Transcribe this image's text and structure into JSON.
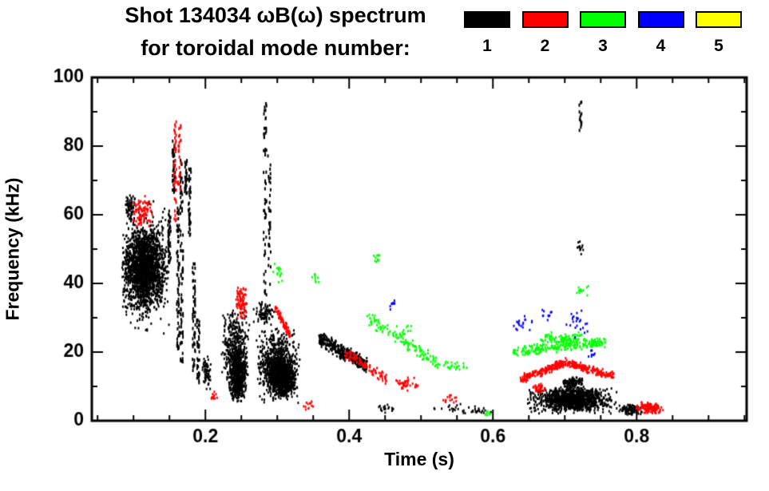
{
  "header": {
    "title_line1": "Shot 134034 ωB(ω) spectrum",
    "title_line2": "for toroidal mode number:"
  },
  "legend": {
    "entries": [
      {
        "label": "1",
        "color": "#000000"
      },
      {
        "label": "2",
        "color": "#ff0000"
      },
      {
        "label": "3",
        "color": "#00ff00"
      },
      {
        "label": "4",
        "color": "#0000ff"
      },
      {
        "label": "5",
        "color": "#ffff00"
      }
    ]
  },
  "chart_data": {
    "type": "scatter",
    "title": "Shot 134034 ωB(ω) spectrum for toroidal mode number: 1-5",
    "xlabel": "Time (s)",
    "ylabel": "Frequency (kHz)",
    "xlim": [
      0.042,
      0.953
    ],
    "ylim": [
      0,
      100
    ],
    "x_ticks": [
      0.2,
      0.4,
      0.6,
      0.8
    ],
    "x_tick_labels": [
      "0.2",
      "0.4",
      "0.6",
      "0.8"
    ],
    "x_minor_step": 0.05,
    "y_ticks": [
      0,
      20,
      40,
      60,
      80,
      100
    ],
    "y_tick_labels": [
      "0",
      "20",
      "40",
      "60",
      "80",
      "100"
    ],
    "y_minor_step": 10,
    "grid": false,
    "legend_position": "top-right",
    "frame_color": "#000000",
    "series": [
      {
        "name": "mode n=1",
        "label": "1",
        "color": "#000000",
        "clusters": [
          {
            "shape": "blob",
            "t": [
              0.082,
              0.148
            ],
            "f": [
              31,
              57
            ],
            "n": 1600
          },
          {
            "shape": "blob",
            "t": [
              0.085,
              0.155
            ],
            "f": [
              24,
              66
            ],
            "n": 350
          },
          {
            "shape": "blob",
            "t": [
              0.088,
              0.102
            ],
            "f": [
              57,
              66
            ],
            "n": 70
          },
          {
            "shape": "streak",
            "t": 0.15,
            "f": [
              46,
              62
            ],
            "n": 45
          },
          {
            "shape": "streak",
            "t": 0.156,
            "f": [
              66,
              82
            ],
            "n": 40
          },
          {
            "shape": "streak",
            "t": 0.162,
            "f": [
              20,
              62
            ],
            "n": 70
          },
          {
            "shape": "streak",
            "t": 0.167,
            "f": [
              14,
              76
            ],
            "n": 80
          },
          {
            "shape": "streak",
            "t": 0.173,
            "f": [
              66,
              77
            ],
            "n": 30
          },
          {
            "shape": "streak",
            "t": 0.178,
            "f": [
              54,
              74
            ],
            "n": 40
          },
          {
            "shape": "streak",
            "t": 0.184,
            "f": [
              14,
              46
            ],
            "n": 55
          },
          {
            "shape": "streak",
            "t": 0.19,
            "f": [
              11,
              30
            ],
            "n": 40
          },
          {
            "shape": "blob",
            "t": [
              0.195,
              0.208
            ],
            "f": [
              9,
              19
            ],
            "n": 70
          },
          {
            "shape": "blob",
            "t": [
              0.222,
              0.262
            ],
            "f": [
              6,
              33
            ],
            "n": 450
          },
          {
            "shape": "blob",
            "t": [
              0.232,
              0.258
            ],
            "f": [
              5,
              20
            ],
            "n": 450
          },
          {
            "shape": "streak",
            "t": 0.283,
            "f": [
              35,
              93
            ],
            "n": 55
          },
          {
            "shape": "streak",
            "t": 0.289,
            "f": [
              38,
              78
            ],
            "n": 35
          },
          {
            "shape": "blob",
            "t": [
              0.27,
              0.332
            ],
            "f": [
              5,
              27
            ],
            "n": 800
          },
          {
            "shape": "blob",
            "t": [
              0.288,
              0.326
            ],
            "f": [
              7,
              18
            ],
            "n": 650
          },
          {
            "shape": "blob",
            "t": [
              0.266,
              0.298
            ],
            "f": [
              27,
              35
            ],
            "n": 90
          },
          {
            "shape": "chirp",
            "t": [
              0.358,
              0.425
            ],
            "f": [
              24,
              16
            ],
            "spread": 2.5,
            "n": 380
          },
          {
            "shape": "blob",
            "t": [
              0.435,
              0.465
            ],
            "f": [
              2,
              5
            ],
            "n": 18
          },
          {
            "shape": "blob",
            "t": [
              0.5,
              0.59
            ],
            "f": [
              1.5,
              5
            ],
            "n": 25
          },
          {
            "shape": "blob",
            "t": [
              0.56,
              0.6
            ],
            "f": [
              1.5,
              4
            ],
            "n": 12
          },
          {
            "shape": "blob",
            "t": [
              0.645,
              0.775
            ],
            "f": [
              2,
              10
            ],
            "n": 650
          },
          {
            "shape": "blob",
            "t": [
              0.675,
              0.75
            ],
            "f": [
              3,
              9.5
            ],
            "n": 550
          },
          {
            "shape": "blob",
            "t": [
              0.693,
              0.727
            ],
            "f": [
              9,
              13
            ],
            "n": 130
          },
          {
            "shape": "streak",
            "t": 0.722,
            "f": [
              84,
              93
            ],
            "n": 14
          },
          {
            "shape": "blob",
            "t": [
              0.716,
              0.728
            ],
            "f": [
              48,
              53
            ],
            "n": 14
          },
          {
            "shape": "blob",
            "t": [
              0.775,
              0.808
            ],
            "f": [
              1.5,
              5
            ],
            "n": 90
          }
        ]
      },
      {
        "name": "mode n=2",
        "label": "2",
        "color": "#ff0000",
        "clusters": [
          {
            "shape": "blob",
            "t": [
              0.097,
              0.127
            ],
            "f": [
              56,
              66
            ],
            "n": 90
          },
          {
            "shape": "streak",
            "t": 0.158,
            "f": [
              58,
              88
            ],
            "n": 35
          },
          {
            "shape": "streak",
            "t": 0.164,
            "f": [
              66,
              86
            ],
            "n": 22
          },
          {
            "shape": "blob",
            "t": [
              0.205,
              0.218
            ],
            "f": [
              6,
              9
            ],
            "n": 12
          },
          {
            "shape": "blob",
            "t": [
              0.242,
              0.258
            ],
            "f": [
              29,
              39
            ],
            "n": 90
          },
          {
            "shape": "chirp",
            "t": [
              0.297,
              0.318
            ],
            "f": [
              33,
              25
            ],
            "spread": 1.8,
            "n": 80
          },
          {
            "shape": "blob",
            "t": [
              0.333,
              0.352
            ],
            "f": [
              3,
              6
            ],
            "n": 12
          },
          {
            "shape": "chirp",
            "t": [
              0.393,
              0.452
            ],
            "f": [
              20,
              12
            ],
            "spread": 1.8,
            "n": 90
          },
          {
            "shape": "blob",
            "t": [
              0.458,
              0.502
            ],
            "f": [
              8,
              13
            ],
            "n": 40
          },
          {
            "shape": "blob",
            "t": [
              0.52,
              0.556
            ],
            "f": [
              4,
              8
            ],
            "n": 14
          },
          {
            "shape": "chirp",
            "t": [
              0.638,
              0.702
            ],
            "f": [
              12,
              17
            ],
            "spread": 1.4,
            "n": 190
          },
          {
            "shape": "chirp",
            "t": [
              0.702,
              0.768
            ],
            "f": [
              17,
              13
            ],
            "spread": 1.4,
            "n": 170
          },
          {
            "shape": "blob",
            "t": [
              0.652,
              0.675
            ],
            "f": [
              8,
              11
            ],
            "n": 30
          },
          {
            "shape": "blob",
            "t": [
              0.798,
              0.838
            ],
            "f": [
              2,
              5.5
            ],
            "n": 140
          }
        ]
      },
      {
        "name": "mode n=3",
        "label": "3",
        "color": "#00ff00",
        "clusters": [
          {
            "shape": "blob",
            "t": [
              0.294,
              0.312
            ],
            "f": [
              40,
              46
            ],
            "n": 16
          },
          {
            "shape": "blob",
            "t": [
              0.344,
              0.362
            ],
            "f": [
              40,
              44
            ],
            "n": 10
          },
          {
            "shape": "chirp",
            "t": [
              0.425,
              0.523
            ],
            "f": [
              30,
              17
            ],
            "spread": 2.2,
            "n": 120
          },
          {
            "shape": "blob",
            "t": [
              0.432,
              0.447
            ],
            "f": [
              45,
              49
            ],
            "n": 10
          },
          {
            "shape": "blob",
            "t": [
              0.465,
              0.49
            ],
            "f": [
              24,
              28
            ],
            "n": 12
          },
          {
            "shape": "blob",
            "t": [
              0.52,
              0.568
            ],
            "f": [
              14,
              18
            ],
            "n": 26
          },
          {
            "shape": "blob",
            "t": [
              0.573,
              0.608
            ],
            "f": [
              1.5,
              3.5
            ],
            "n": 8
          },
          {
            "shape": "chirp",
            "t": [
              0.628,
              0.758
            ],
            "f": [
              20,
              23
            ],
            "spread": 1.6,
            "n": 210
          },
          {
            "shape": "blob",
            "t": [
              0.66,
              0.732
            ],
            "f": [
              22,
              26
            ],
            "n": 80
          },
          {
            "shape": "blob",
            "t": [
              0.703,
              0.737
            ],
            "f": [
              36,
              40
            ],
            "n": 12
          }
        ]
      },
      {
        "name": "mode n=4",
        "label": "4",
        "color": "#0000ff",
        "clusters": [
          {
            "shape": "blob",
            "t": [
              0.455,
              0.468
            ],
            "f": [
              32,
              35
            ],
            "n": 8
          },
          {
            "shape": "blob",
            "t": [
              0.628,
              0.658
            ],
            "f": [
              26,
              31
            ],
            "n": 18
          },
          {
            "shape": "blob",
            "t": [
              0.664,
              0.686
            ],
            "f": [
              29,
              33
            ],
            "n": 10
          },
          {
            "shape": "blob",
            "t": [
              0.7,
              0.737
            ],
            "f": [
              24,
              33
            ],
            "n": 24
          },
          {
            "shape": "blob",
            "t": [
              0.729,
              0.747
            ],
            "f": [
              18,
              21
            ],
            "n": 8
          }
        ]
      },
      {
        "name": "mode n=5",
        "label": "5",
        "color": "#ffff00",
        "clusters": []
      }
    ]
  }
}
